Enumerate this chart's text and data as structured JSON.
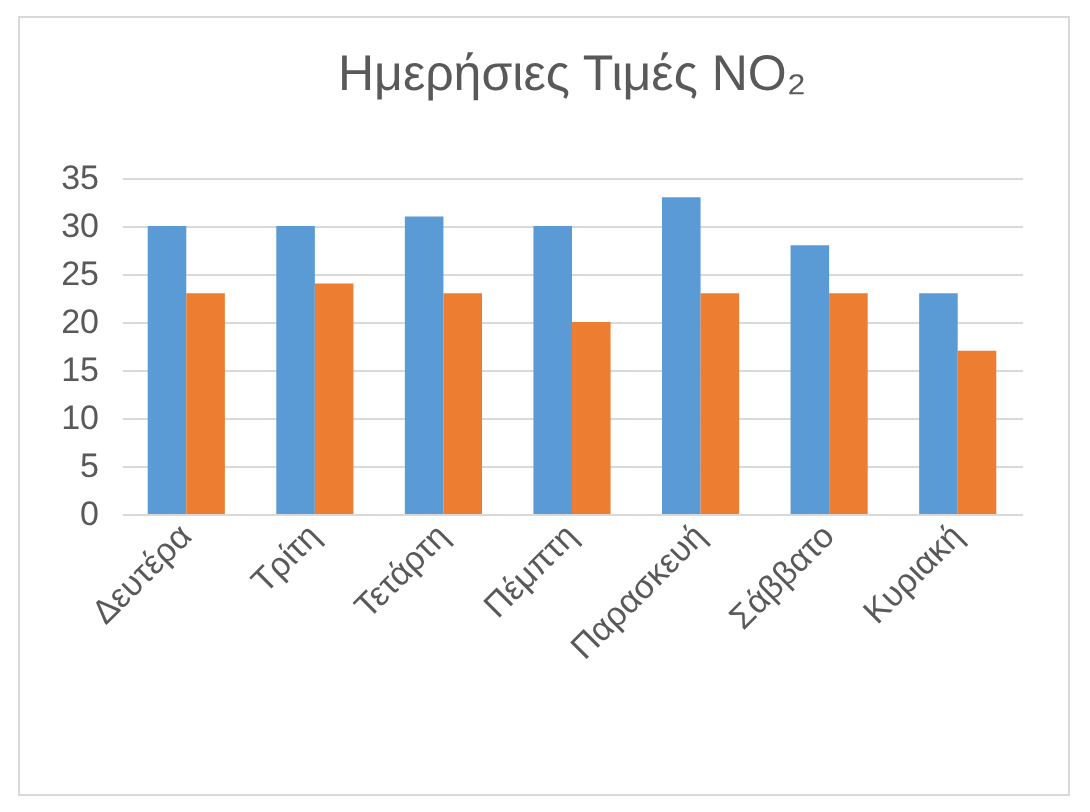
{
  "chart_data": {
    "type": "bar",
    "title": "Ημερήσιες Τιμές NO₂",
    "categories": [
      "Δευτέρα",
      "Τρίτη",
      "Τετάρτη",
      "Πέμπτη",
      "Παρασκευή",
      "Σάββατο",
      "Κυριακή"
    ],
    "series": [
      {
        "color": "#5b9bd5",
        "values": [
          30,
          30,
          31,
          30,
          33,
          28,
          23
        ]
      },
      {
        "color": "#ed7d31",
        "values": [
          23,
          24,
          23,
          20,
          23,
          23,
          17
        ]
      }
    ],
    "ylim": [
      0,
      35
    ],
    "yticks": [
      0,
      5,
      10,
      15,
      20,
      25,
      30,
      35
    ],
    "grid": true
  }
}
